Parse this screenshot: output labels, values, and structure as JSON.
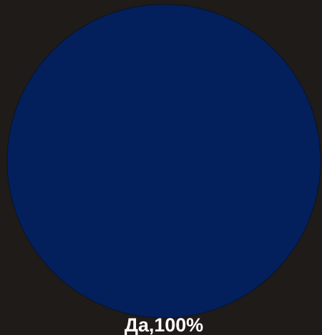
{
  "chart_data": {
    "type": "pie",
    "title": "",
    "slices": [
      {
        "label": "Да",
        "value": 100,
        "display": "Да,100%",
        "color": "#03205c"
      }
    ],
    "legend": "none",
    "background_color": "#1f1b18",
    "outline_color": "#0a1226"
  }
}
